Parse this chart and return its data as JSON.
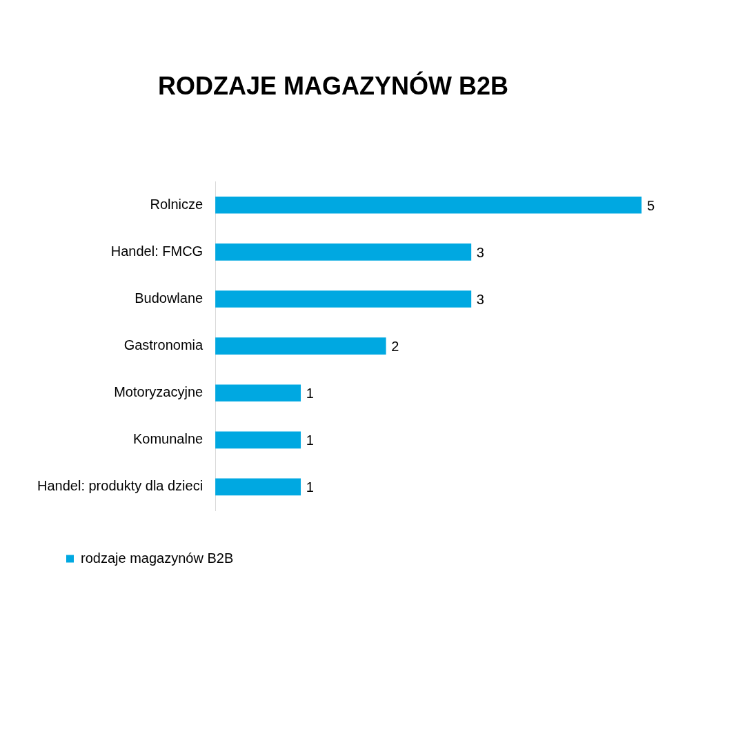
{
  "chart_data": {
    "type": "bar",
    "orientation": "horizontal",
    "title": "RODZAJE MAGAZYNÓW B2B",
    "categories": [
      "Rolnicze",
      "Handel: FMCG",
      "Budowlane",
      "Gastronomia",
      "Motoryzacyjne",
      "Komunalne",
      "Handel: produkty dla dzieci"
    ],
    "series": [
      {
        "name": "rodzaje magazynów B2B",
        "color": "#00a8e1",
        "values": [
          5,
          3,
          3,
          2,
          1,
          1,
          1
        ]
      }
    ],
    "data_labels": true,
    "legend": "bottom left"
  }
}
